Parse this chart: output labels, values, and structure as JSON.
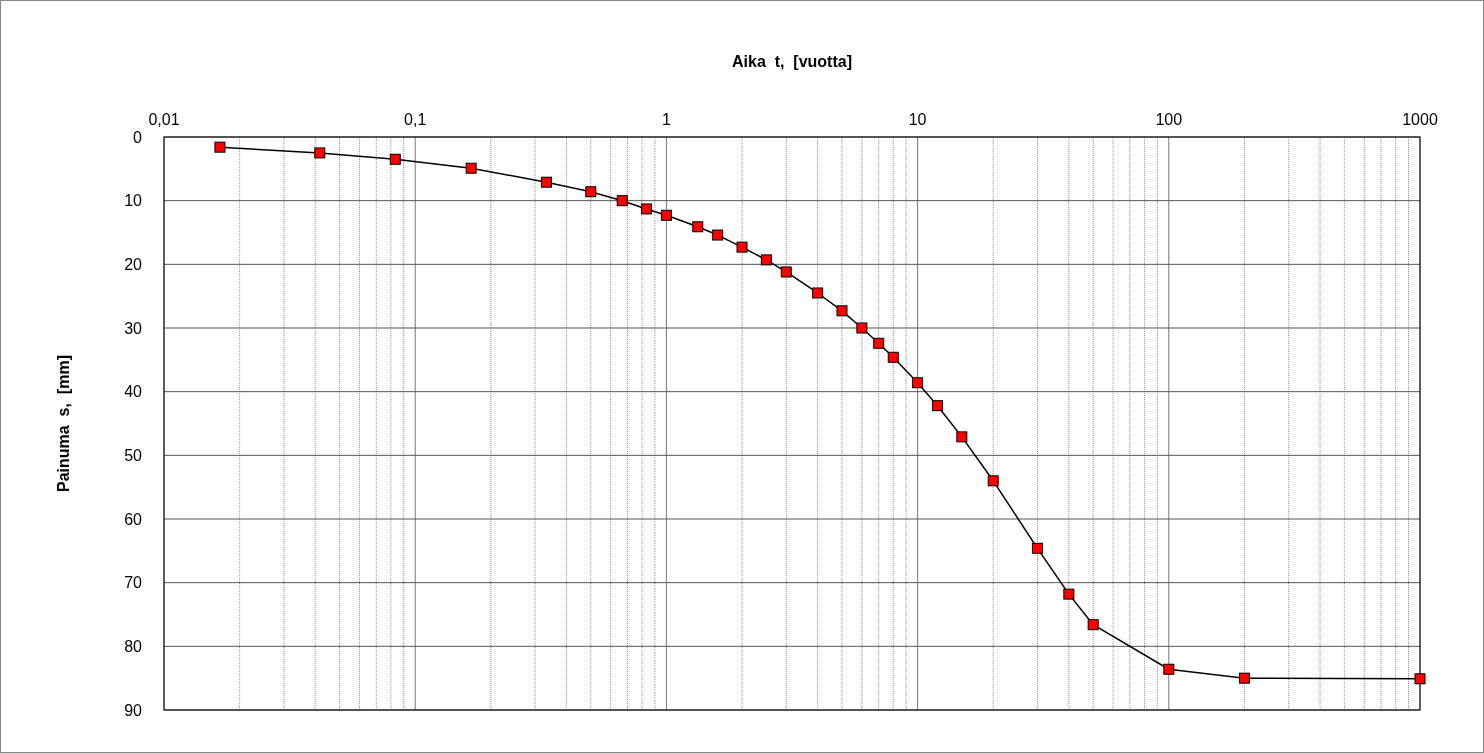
{
  "chart_data": {
    "type": "line",
    "xlabel": "Aika  t,  [vuotta]",
    "ylabel": "Painuma  s,  [mm]",
    "x": [
      0.0167,
      0.0417,
      0.0833,
      0.167,
      0.333,
      0.5,
      0.667,
      0.833,
      1,
      1.333,
      1.6,
      2,
      2.5,
      3,
      4,
      5,
      6,
      7,
      8,
      10,
      12,
      15,
      20,
      30,
      40,
      50,
      100,
      200,
      1000
    ],
    "series": [
      {
        "color": "#ff0000",
        "values": [
          1.6,
          2.5,
          3.5,
          4.9,
          7.1,
          8.6,
          10,
          11.3,
          12.3,
          14.1,
          15.4,
          17.3,
          19.3,
          21.2,
          24.5,
          27.3,
          30,
          32.4,
          34.6,
          38.6,
          42.2,
          47.1,
          54,
          64.6,
          71.8,
          76.6,
          83.6,
          85,
          85.1
        ]
      }
    ],
    "log": "x",
    "xlim": [
      0.01,
      1000
    ],
    "xticks": [
      {
        "value": 0.01,
        "label": "0,01"
      },
      {
        "value": 0.1,
        "label": "0,1"
      },
      1,
      10,
      100,
      1000
    ],
    "ylim": [
      90,
      0
    ],
    "yticks": [
      0,
      10,
      20,
      30,
      40,
      50,
      60,
      70,
      80,
      90
    ],
    "grid": true,
    "marker": "square",
    "line_style": "solid"
  }
}
